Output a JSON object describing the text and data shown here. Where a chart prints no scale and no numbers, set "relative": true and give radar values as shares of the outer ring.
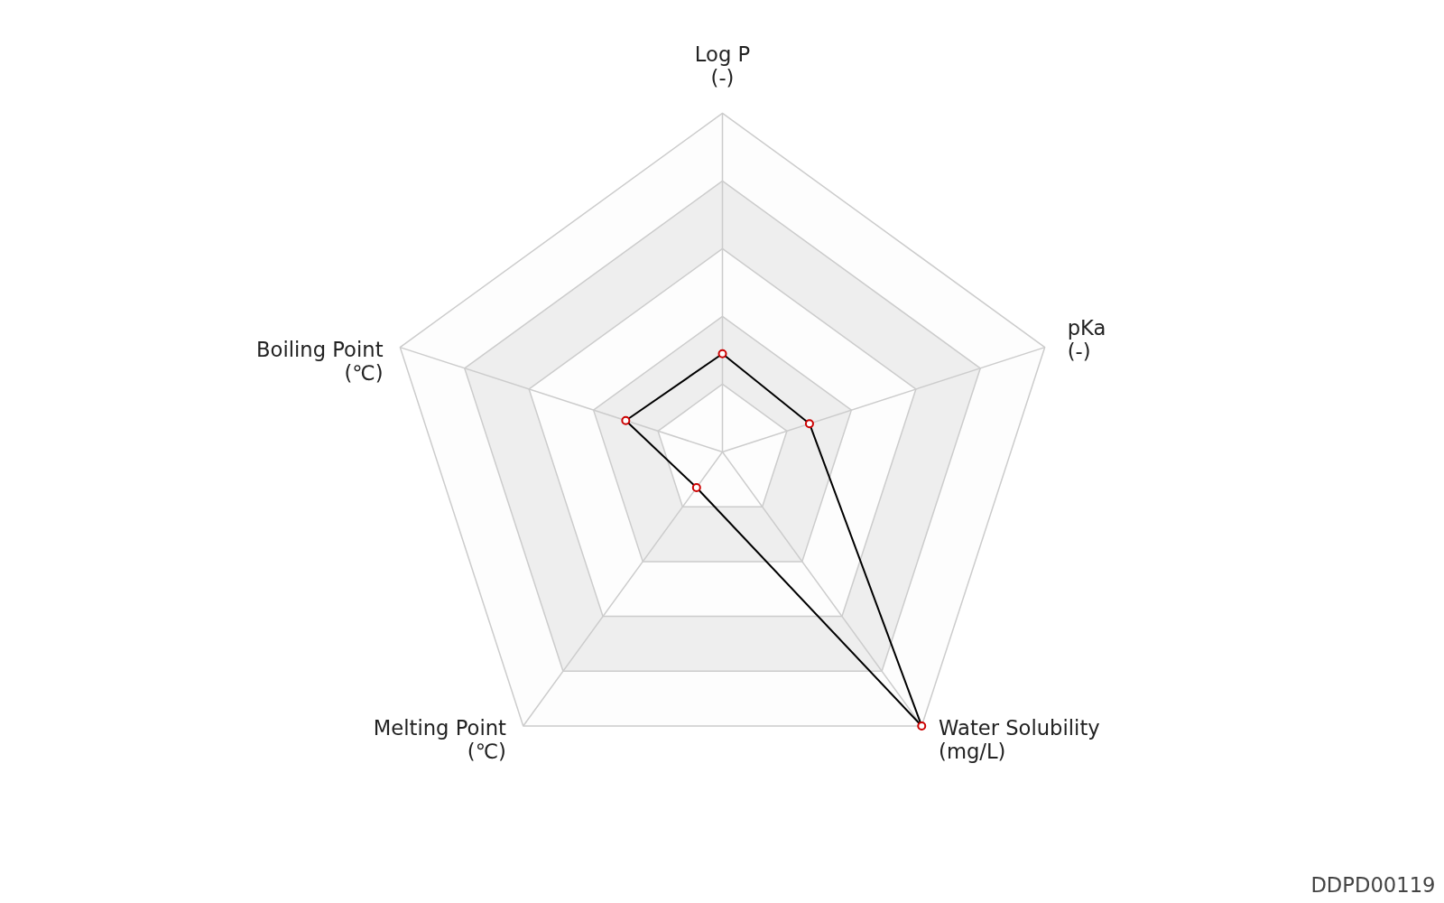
{
  "chart_data": {
    "type": "radar",
    "relative": true,
    "grid": true,
    "marker": "circle",
    "categories": [
      "Log P\n(-)",
      "pKa\n(-)",
      "Water Solubility\n(mg/L)",
      "Melting Point\n(℃)",
      "Boiling Point\n(℃)"
    ],
    "series": [
      {
        "color": "#000000",
        "values": [
          0.29,
          0.27,
          1.0,
          0.13,
          0.3
        ]
      }
    ],
    "annotations": [
      "DDPD00119"
    ]
  }
}
